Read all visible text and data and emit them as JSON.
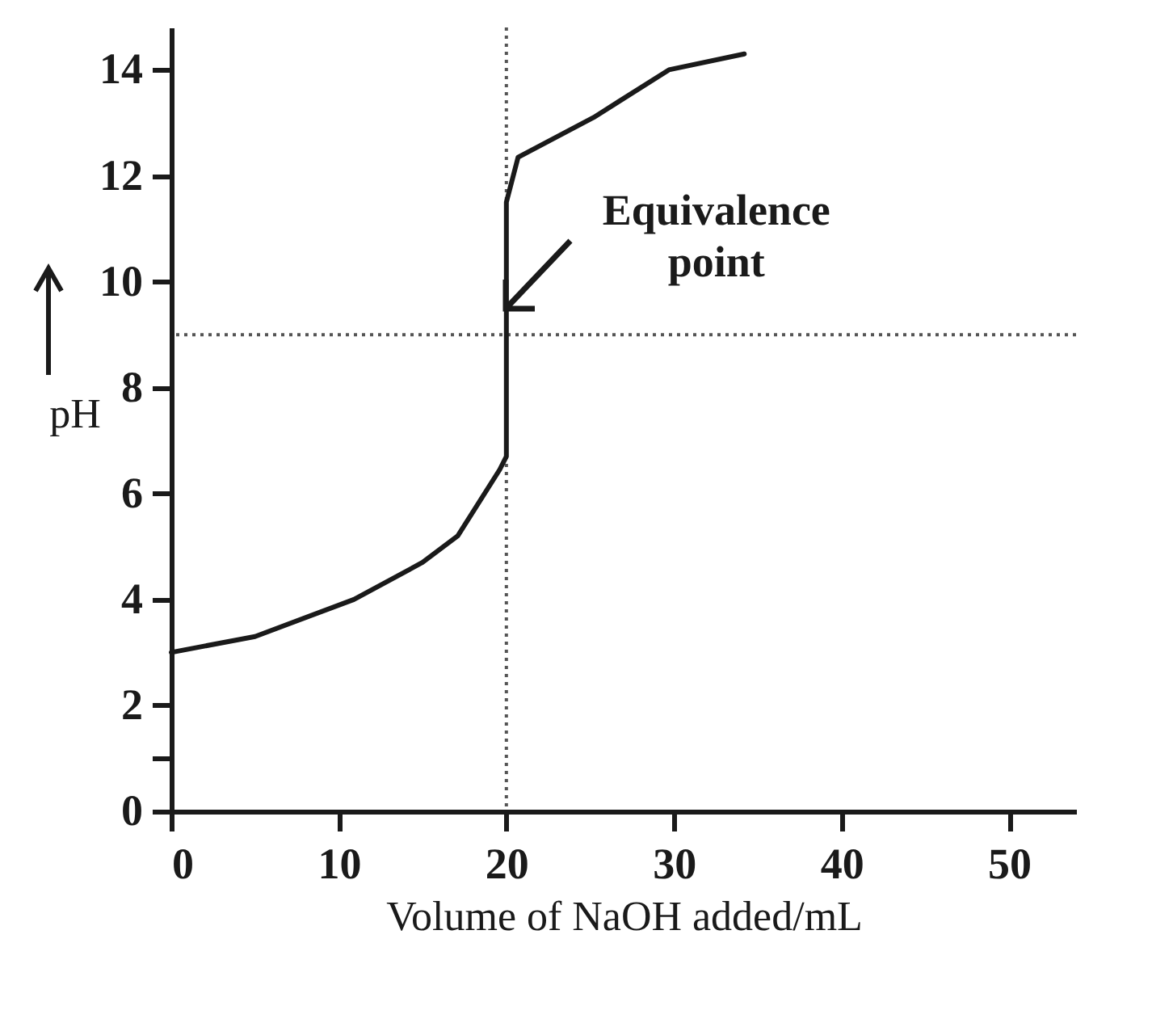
{
  "chart_data": {
    "type": "line",
    "xlabel": "Volume of NaOH added/mL",
    "ylabel": "pH",
    "xlim": [
      0,
      54
    ],
    "xticks": [
      0,
      10,
      20,
      30,
      40,
      50
    ],
    "ylim": [
      0,
      14.8
    ],
    "yticks": [
      0,
      {
        "value": 1,
        "label": null
      },
      2,
      4,
      6,
      8,
      10,
      12,
      14
    ],
    "marker": "none",
    "series": [
      {
        "color": "#1a1a1a",
        "line_style": "solid",
        "x": [
          0,
          5,
          10.9,
          15,
          17.1,
          19.6,
          20,
          20,
          20.7,
          25.2,
          29.7,
          34.2
        ],
        "values": [
          3.0,
          3.3,
          4.0,
          4.7,
          5.2,
          6.45,
          6.7,
          11.5,
          12.35,
          13.1,
          14.0,
          14.3
        ]
      }
    ],
    "ref_lines": [
      {
        "axis": "y",
        "value": 9,
        "line_style": "dotted",
        "color": "#555555"
      },
      {
        "axis": "x",
        "value": 20,
        "line_style": "dotted",
        "color": "#555555"
      }
    ],
    "annotations": [
      {
        "text": "Equivalence point",
        "x": 20,
        "y": 9
      }
    ]
  }
}
